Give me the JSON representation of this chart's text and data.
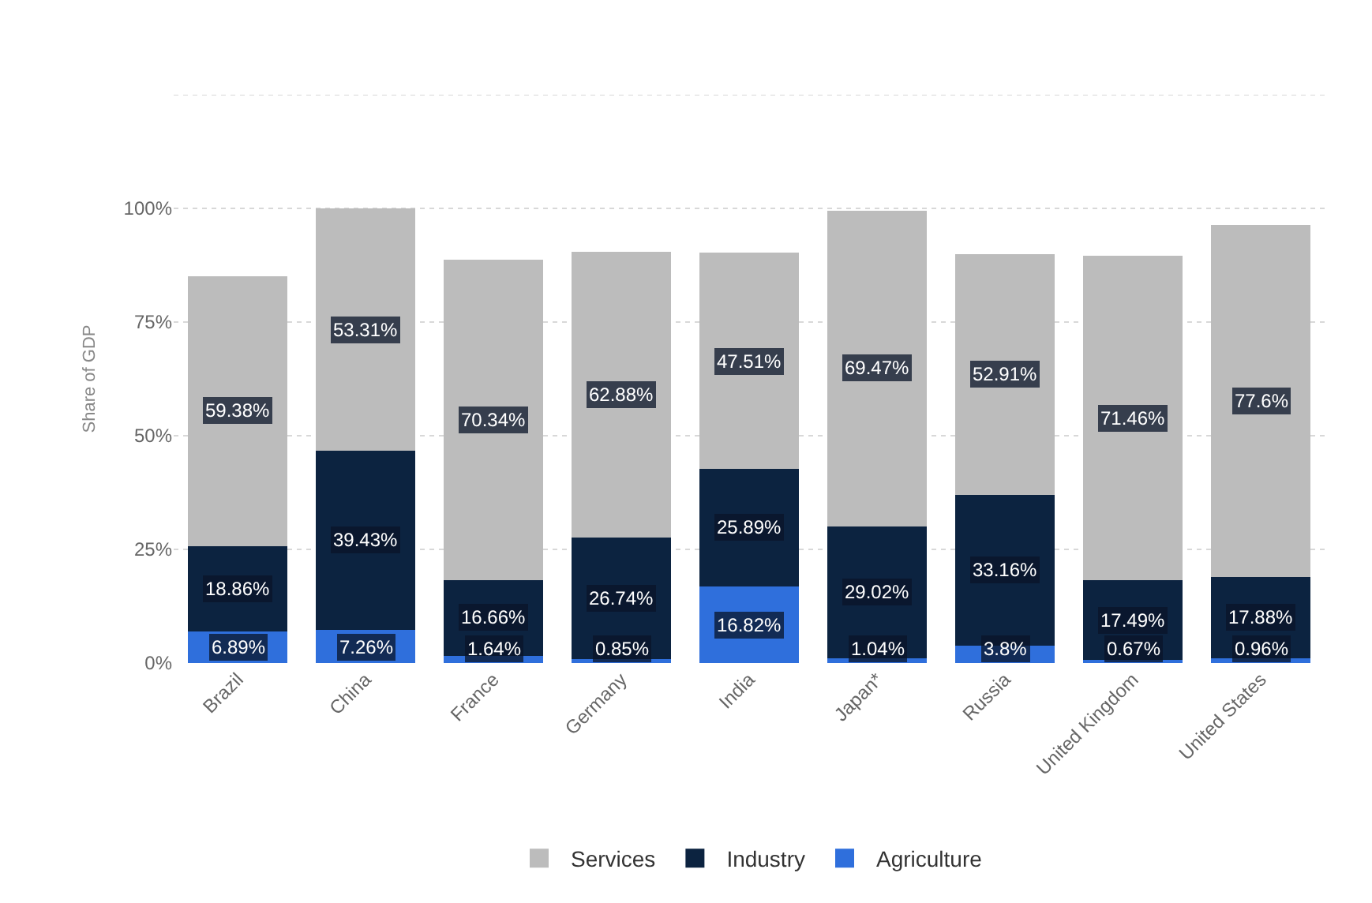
{
  "chart_data": {
    "type": "bar",
    "stacked": true,
    "ylabel": "Share of GDP",
    "categories": [
      "Brazil",
      "China",
      "France",
      "Germany",
      "India",
      "Japan*",
      "Russia",
      "United Kingdom",
      "United States"
    ],
    "series": [
      {
        "name": "Agriculture",
        "color": "#2f6fdc",
        "values": [
          6.89,
          7.26,
          1.64,
          0.85,
          16.82,
          1.04,
          3.8,
          0.67,
          0.96
        ],
        "value_labels": [
          "6.89%",
          "7.26%",
          "1.64%",
          "0.85%",
          "16.82%",
          "1.04%",
          "3.8%",
          "0.67%",
          "0.96%"
        ]
      },
      {
        "name": "Industry",
        "color": "#0c2340",
        "values": [
          18.86,
          39.43,
          16.66,
          26.74,
          25.89,
          29.02,
          33.16,
          17.49,
          17.88
        ],
        "value_labels": [
          "18.86%",
          "39.43%",
          "16.66%",
          "26.74%",
          "25.89%",
          "29.02%",
          "33.16%",
          "17.49%",
          "17.88%"
        ]
      },
      {
        "name": "Services",
        "color": "#bcbcbc",
        "values": [
          59.38,
          53.31,
          70.34,
          62.88,
          47.51,
          69.47,
          52.91,
          71.46,
          77.6
        ],
        "value_labels": [
          "59.38%",
          "53.31%",
          "70.34%",
          "62.88%",
          "47.51%",
          "69.47%",
          "52.91%",
          "71.46%",
          "77.6%"
        ]
      }
    ],
    "ylim": [
      0,
      125
    ],
    "yticks": [
      {
        "value": 0,
        "label": "0%"
      },
      {
        "value": 25,
        "label": "25%"
      },
      {
        "value": 50,
        "label": "50%"
      },
      {
        "value": 75,
        "label": "75%"
      },
      {
        "value": 100,
        "label": "100%"
      },
      {
        "value": 125,
        "label": null
      }
    ],
    "grid": "y",
    "legend": "bottom"
  }
}
